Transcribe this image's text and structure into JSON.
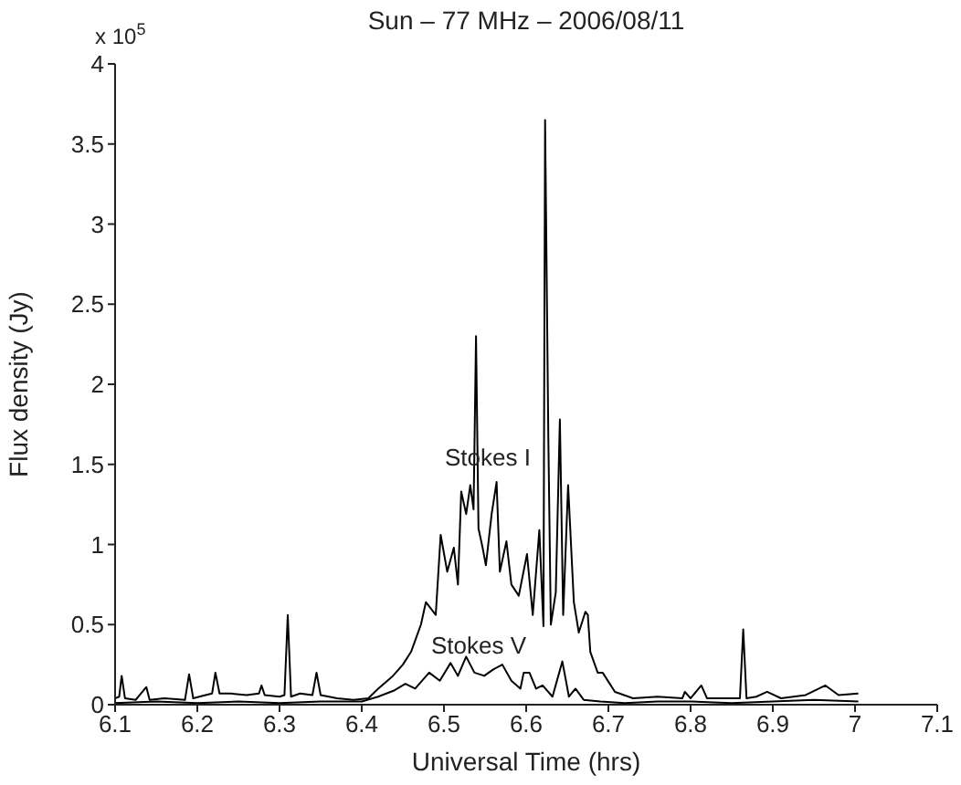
{
  "chart_data": {
    "type": "line",
    "title": "Sun – 77 MHz – 2006/08/11",
    "xlabel": "Universal Time (hrs)",
    "ylabel": "Flux density (Jy)",
    "xlim": [
      6.1,
      7.1
    ],
    "xticks": [
      6.1,
      6.2,
      6.3,
      6.4,
      6.5,
      6.6,
      6.7,
      6.8,
      6.9,
      7,
      7.1
    ],
    "ylim": [
      0,
      4
    ],
    "yticks": [
      0,
      0.5,
      1,
      1.5,
      2,
      2.5,
      3,
      3.5,
      4
    ],
    "grid": false,
    "marker": "none",
    "line_style": "solid",
    "series": [
      {
        "color": "#000000",
        "x": [
          6.1,
          6.105,
          6.108,
          6.112,
          6.125,
          6.138,
          6.142,
          6.16,
          6.185,
          6.19,
          6.195,
          6.21,
          6.218,
          6.222,
          6.227,
          6.24,
          6.26,
          6.275,
          6.278,
          6.282,
          6.3,
          6.306,
          6.31,
          6.314,
          6.325,
          6.34,
          6.345,
          6.35,
          6.37,
          6.39,
          6.408,
          6.42,
          6.438,
          6.45,
          6.46,
          6.472,
          6.478,
          6.49,
          6.496,
          6.504,
          6.512,
          6.517,
          6.521,
          6.527,
          6.532,
          6.536,
          6.539,
          6.542,
          6.547,
          6.551,
          6.558,
          6.564,
          6.568,
          6.576,
          6.582,
          6.591,
          6.601,
          6.608,
          6.616,
          6.621,
          6.623,
          6.627,
          6.63,
          6.636,
          6.641,
          6.645,
          6.651,
          6.658,
          6.664,
          6.672,
          6.675,
          6.678,
          6.687,
          6.693,
          6.708,
          6.73,
          6.76,
          6.79,
          6.793,
          6.8,
          6.813,
          6.82,
          6.84,
          6.86,
          6.864,
          6.868,
          6.88,
          6.893,
          6.91,
          6.94,
          6.964,
          6.98,
          7.004
        ],
        "values": [
          0.04,
          0.05,
          0.18,
          0.04,
          0.03,
          0.11,
          0.03,
          0.04,
          0.03,
          0.19,
          0.04,
          0.06,
          0.07,
          0.2,
          0.07,
          0.07,
          0.06,
          0.07,
          0.12,
          0.06,
          0.05,
          0.06,
          0.56,
          0.05,
          0.07,
          0.06,
          0.2,
          0.06,
          0.04,
          0.03,
          0.04,
          0.1,
          0.18,
          0.25,
          0.33,
          0.5,
          0.64,
          0.56,
          1.06,
          0.83,
          0.98,
          0.75,
          1.33,
          1.19,
          1.37,
          1.22,
          2.3,
          1.1,
          0.98,
          0.87,
          1.19,
          1.39,
          0.83,
          1.02,
          0.75,
          0.68,
          0.94,
          0.56,
          1.09,
          0.49,
          3.65,
          1.65,
          0.5,
          0.7,
          1.78,
          0.56,
          1.37,
          0.64,
          0.45,
          0.58,
          0.56,
          0.33,
          0.2,
          0.2,
          0.08,
          0.04,
          0.05,
          0.04,
          0.08,
          0.04,
          0.12,
          0.04,
          0.04,
          0.04,
          0.47,
          0.04,
          0.05,
          0.08,
          0.04,
          0.06,
          0.12,
          0.06,
          0.07
        ]
      },
      {
        "color": "#000000",
        "x": [
          6.1,
          6.15,
          6.2,
          6.25,
          6.3,
          6.35,
          6.4,
          6.42,
          6.44,
          6.453,
          6.465,
          6.482,
          6.495,
          6.508,
          6.517,
          6.527,
          6.537,
          6.549,
          6.56,
          6.571,
          6.582,
          6.593,
          6.597,
          6.604,
          6.612,
          6.62,
          6.632,
          6.644,
          6.652,
          6.66,
          6.67,
          6.69,
          6.72,
          6.76,
          6.8,
          6.85,
          6.9,
          6.95,
          7.004
        ],
        "values": [
          0.01,
          0.02,
          0.01,
          0.02,
          0.01,
          0.02,
          0.02,
          0.05,
          0.09,
          0.13,
          0.1,
          0.2,
          0.15,
          0.26,
          0.18,
          0.3,
          0.2,
          0.18,
          0.22,
          0.25,
          0.15,
          0.1,
          0.2,
          0.2,
          0.1,
          0.12,
          0.05,
          0.27,
          0.05,
          0.1,
          0.03,
          0.02,
          0.01,
          0.02,
          0.02,
          0.01,
          0.02,
          0.03,
          0.02
        ]
      }
    ],
    "annotations": [
      "Stokes I",
      "Stokes V",
      "x 10$^{5}$"
    ]
  }
}
